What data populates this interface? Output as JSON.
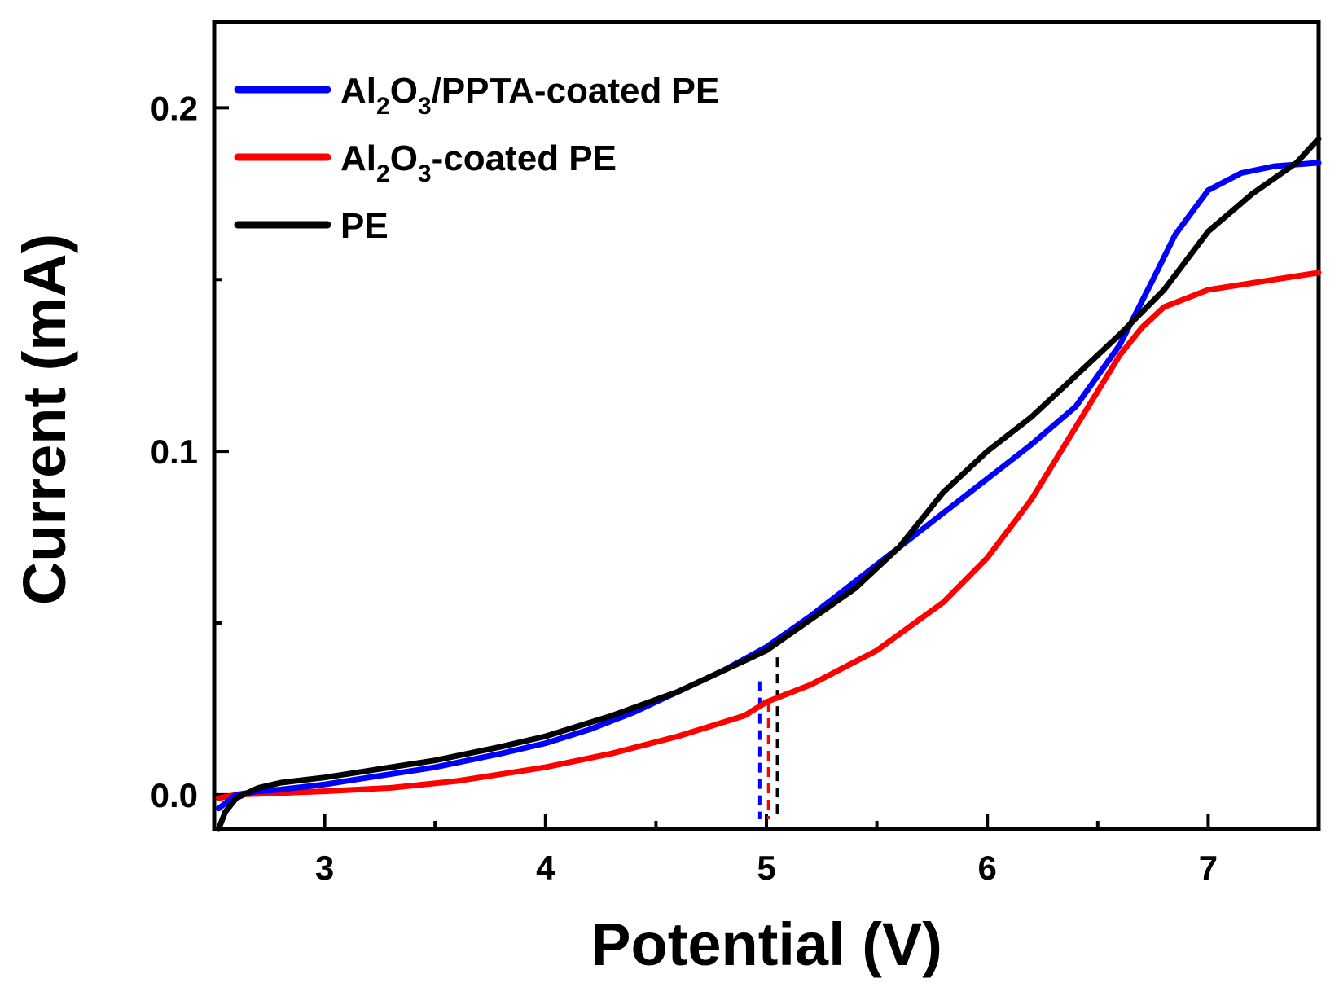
{
  "chart_data": {
    "type": "line",
    "xlabel": "Potential (V)",
    "ylabel": "Current (mA)",
    "xlim": [
      2.5,
      7.5
    ],
    "ylim": [
      -0.01,
      0.225
    ],
    "xticks": [
      3,
      4,
      5,
      6,
      7
    ],
    "xtick_labels": [
      "3",
      "4",
      "5",
      "6",
      "7"
    ],
    "yticks": [
      0.0,
      0.1,
      0.2
    ],
    "ytick_labels": [
      "0.0",
      "0.1",
      "0.2"
    ],
    "legend_position": "top-left",
    "series": [
      {
        "name": "Al2O3/PPTA-coated PE",
        "legend_parts": [
          "Al",
          "2",
          "O",
          "3",
          "/PPTA-coated PE"
        ],
        "color": "#0000ff",
        "x": [
          2.52,
          2.6,
          2.7,
          2.8,
          3.0,
          3.2,
          3.5,
          3.8,
          4.0,
          4.2,
          4.4,
          4.6,
          4.8,
          5.0,
          5.2,
          5.4,
          5.6,
          5.8,
          6.0,
          6.2,
          6.4,
          6.6,
          6.75,
          6.85,
          7.0,
          7.15,
          7.3,
          7.5
        ],
        "y": [
          -0.004,
          0.0,
          0.001,
          0.0015,
          0.003,
          0.005,
          0.008,
          0.012,
          0.015,
          0.019,
          0.024,
          0.03,
          0.036,
          0.043,
          0.052,
          0.062,
          0.072,
          0.082,
          0.092,
          0.102,
          0.113,
          0.131,
          0.15,
          0.163,
          0.176,
          0.181,
          0.183,
          0.184
        ]
      },
      {
        "name": "Al2O3-coated PE",
        "legend_parts": [
          "Al",
          "2",
          "O",
          "3",
          "-coated PE"
        ],
        "color": "#ff0000",
        "x": [
          2.52,
          2.6,
          2.8,
          3.0,
          3.3,
          3.6,
          4.0,
          4.3,
          4.6,
          4.9,
          5.0,
          5.2,
          5.5,
          5.8,
          6.0,
          6.2,
          6.4,
          6.6,
          6.7,
          6.8,
          7.0,
          7.2,
          7.5
        ],
        "y": [
          -0.001,
          0.0,
          0.0005,
          0.001,
          0.002,
          0.004,
          0.008,
          0.012,
          0.017,
          0.023,
          0.027,
          0.032,
          0.042,
          0.056,
          0.069,
          0.086,
          0.107,
          0.128,
          0.136,
          0.142,
          0.147,
          0.149,
          0.152
        ]
      },
      {
        "name": "PE",
        "legend_parts": [
          "PE"
        ],
        "color": "#000000",
        "x": [
          2.52,
          2.55,
          2.6,
          2.7,
          2.8,
          3.0,
          3.2,
          3.5,
          3.8,
          4.0,
          4.3,
          4.6,
          4.9,
          5.0,
          5.2,
          5.4,
          5.6,
          5.8,
          6.0,
          6.2,
          6.4,
          6.6,
          6.8,
          7.0,
          7.2,
          7.4,
          7.5
        ],
        "y": [
          -0.01,
          -0.005,
          -0.001,
          0.002,
          0.0035,
          0.005,
          0.007,
          0.01,
          0.014,
          0.017,
          0.023,
          0.03,
          0.039,
          0.042,
          0.051,
          0.06,
          0.072,
          0.088,
          0.1,
          0.11,
          0.122,
          0.134,
          0.147,
          0.164,
          0.175,
          0.184,
          0.191
        ]
      }
    ],
    "onset_markers": [
      {
        "series": "Al2O3/PPTA-coated PE",
        "color": "#0000ff",
        "x": 4.97,
        "y_top": 0.033
      },
      {
        "series": "Al2O3-coated PE",
        "color": "#ff0000",
        "x": 5.01,
        "y_top": 0.027
      },
      {
        "series": "PE",
        "color": "#000000",
        "x": 5.05,
        "y_top": 0.04
      }
    ]
  }
}
